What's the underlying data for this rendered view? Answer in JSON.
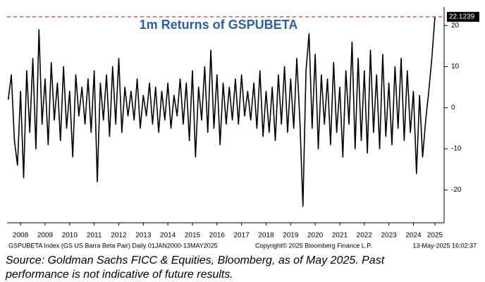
{
  "chart_data": {
    "type": "line",
    "title": "1m Returns of GSPUBETA",
    "x": [
      2008,
      2008.125,
      2008.25,
      2008.375,
      2008.5,
      2008.625,
      2008.75,
      2008.875,
      2009,
      2009.125,
      2009.25,
      2009.375,
      2009.5,
      2009.625,
      2009.75,
      2009.875,
      2010,
      2010.125,
      2010.25,
      2010.375,
      2010.5,
      2010.625,
      2010.75,
      2010.875,
      2011,
      2011.125,
      2011.25,
      2011.375,
      2011.5,
      2011.625,
      2011.75,
      2011.875,
      2012,
      2012.125,
      2012.25,
      2012.375,
      2012.5,
      2012.625,
      2012.75,
      2012.875,
      2013,
      2013.125,
      2013.25,
      2013.375,
      2013.5,
      2013.625,
      2013.75,
      2013.875,
      2014,
      2014.125,
      2014.25,
      2014.375,
      2014.5,
      2014.625,
      2014.75,
      2014.875,
      2015,
      2015.125,
      2015.25,
      2015.375,
      2015.5,
      2015.625,
      2015.75,
      2015.875,
      2016,
      2016.125,
      2016.25,
      2016.375,
      2016.5,
      2016.625,
      2016.75,
      2016.875,
      2017,
      2017.125,
      2017.25,
      2017.375,
      2017.5,
      2017.625,
      2017.75,
      2017.875,
      2018,
      2018.125,
      2018.25,
      2018.375,
      2018.5,
      2018.625,
      2018.75,
      2018.875,
      2019,
      2019.125,
      2019.25,
      2019.375,
      2019.5,
      2019.625,
      2019.75,
      2019.875,
      2020,
      2020.125,
      2020.25,
      2020.375,
      2020.5,
      2020.625,
      2020.75,
      2020.875,
      2021,
      2021.125,
      2021.25,
      2021.375,
      2021.5,
      2021.625,
      2021.75,
      2021.875,
      2022,
      2022.125,
      2022.25,
      2022.375,
      2022.5,
      2022.625,
      2022.75,
      2022.875,
      2023,
      2023.125,
      2023.25,
      2023.375,
      2023.5,
      2023.625,
      2023.75,
      2023.875,
      2024,
      2024.125,
      2024.25,
      2024.375,
      2024.5,
      2024.625,
      2024.75,
      2024.875,
      2025,
      2025.125,
      2025.25,
      2025.375
    ],
    "values": [
      2,
      8,
      -8,
      -14,
      4,
      -17,
      9,
      -6,
      12,
      -10,
      19,
      -4,
      7,
      -9,
      11,
      -3,
      6,
      -8,
      10,
      -5,
      4,
      -12,
      8,
      -2,
      5,
      -4,
      7,
      -6,
      9,
      -18,
      6,
      -3,
      8,
      -7,
      10,
      -4,
      12,
      -6,
      5,
      -2,
      4,
      -3,
      7,
      -5,
      3,
      -2,
      6,
      -4,
      5,
      -6,
      4,
      -3,
      6,
      -5,
      3,
      -2,
      7,
      -4,
      6,
      -8,
      9,
      -12,
      5,
      -3,
      10,
      -6,
      14,
      -5,
      8,
      -9,
      6,
      -4,
      5,
      -3,
      7,
      -4,
      8,
      -2,
      4,
      -3,
      6,
      -5,
      9,
      -7,
      4,
      -6,
      5,
      -8,
      8,
      -4,
      10,
      -6,
      7,
      -5,
      12,
      -3,
      -24,
      9,
      18,
      -5,
      13,
      -10,
      8,
      -4,
      7,
      -9,
      11,
      -6,
      5,
      -12,
      9,
      -4,
      16,
      -10,
      12,
      -8,
      9,
      -11,
      14,
      -6,
      8,
      -10,
      13,
      -7,
      6,
      -9,
      10,
      -5,
      12,
      -8,
      9,
      -6,
      4,
      -16,
      3,
      -12,
      -3,
      4,
      12,
      22.1239
    ],
    "color": "#000000",
    "hline": 22.1239,
    "hline_color": "#e03030",
    "xlim": [
      2007.95,
      2025.75
    ],
    "xticks": [
      {
        "value": 2008.5,
        "label": "2008"
      },
      {
        "value": 2009.5,
        "label": "2009"
      },
      {
        "value": 2010.5,
        "label": "2010"
      },
      {
        "value": 2011.5,
        "label": "2011"
      },
      {
        "value": 2012.5,
        "label": "2012"
      },
      {
        "value": 2013.5,
        "label": "2013"
      },
      {
        "value": 2014.5,
        "label": "2014"
      },
      {
        "value": 2015.5,
        "label": "2015"
      },
      {
        "value": 2016.5,
        "label": "2016"
      },
      {
        "value": 2017.5,
        "label": "2017"
      },
      {
        "value": 2018.5,
        "label": "2018"
      },
      {
        "value": 2019.5,
        "label": "2019"
      },
      {
        "value": 2020.5,
        "label": "2020"
      },
      {
        "value": 2021.5,
        "label": "2021"
      },
      {
        "value": 2022.5,
        "label": "2022"
      },
      {
        "value": 2023.5,
        "label": "2023"
      },
      {
        "value": 2024.5,
        "label": "2024"
      },
      {
        "value": 2025.375,
        "label": "2025"
      }
    ],
    "ylim": [
      -28,
      24.5
    ],
    "yticks": [
      -20,
      -10,
      0,
      10,
      20
    ],
    "footer_left": "GSPUBETA Index (GS US Barra Beta Pair)  Daily 01JAN2000-13MAY2025",
    "footer_mid": "Copyright© 2025 Bloomberg Finance L.P.",
    "footer_right": "13-May-2025 16:02:37",
    "source_lines": [
      "Source: Goldman Sachs FICC & Equities, Bloomberg, as of May 2025. Past",
      "performance is not indicative of future results."
    ]
  }
}
